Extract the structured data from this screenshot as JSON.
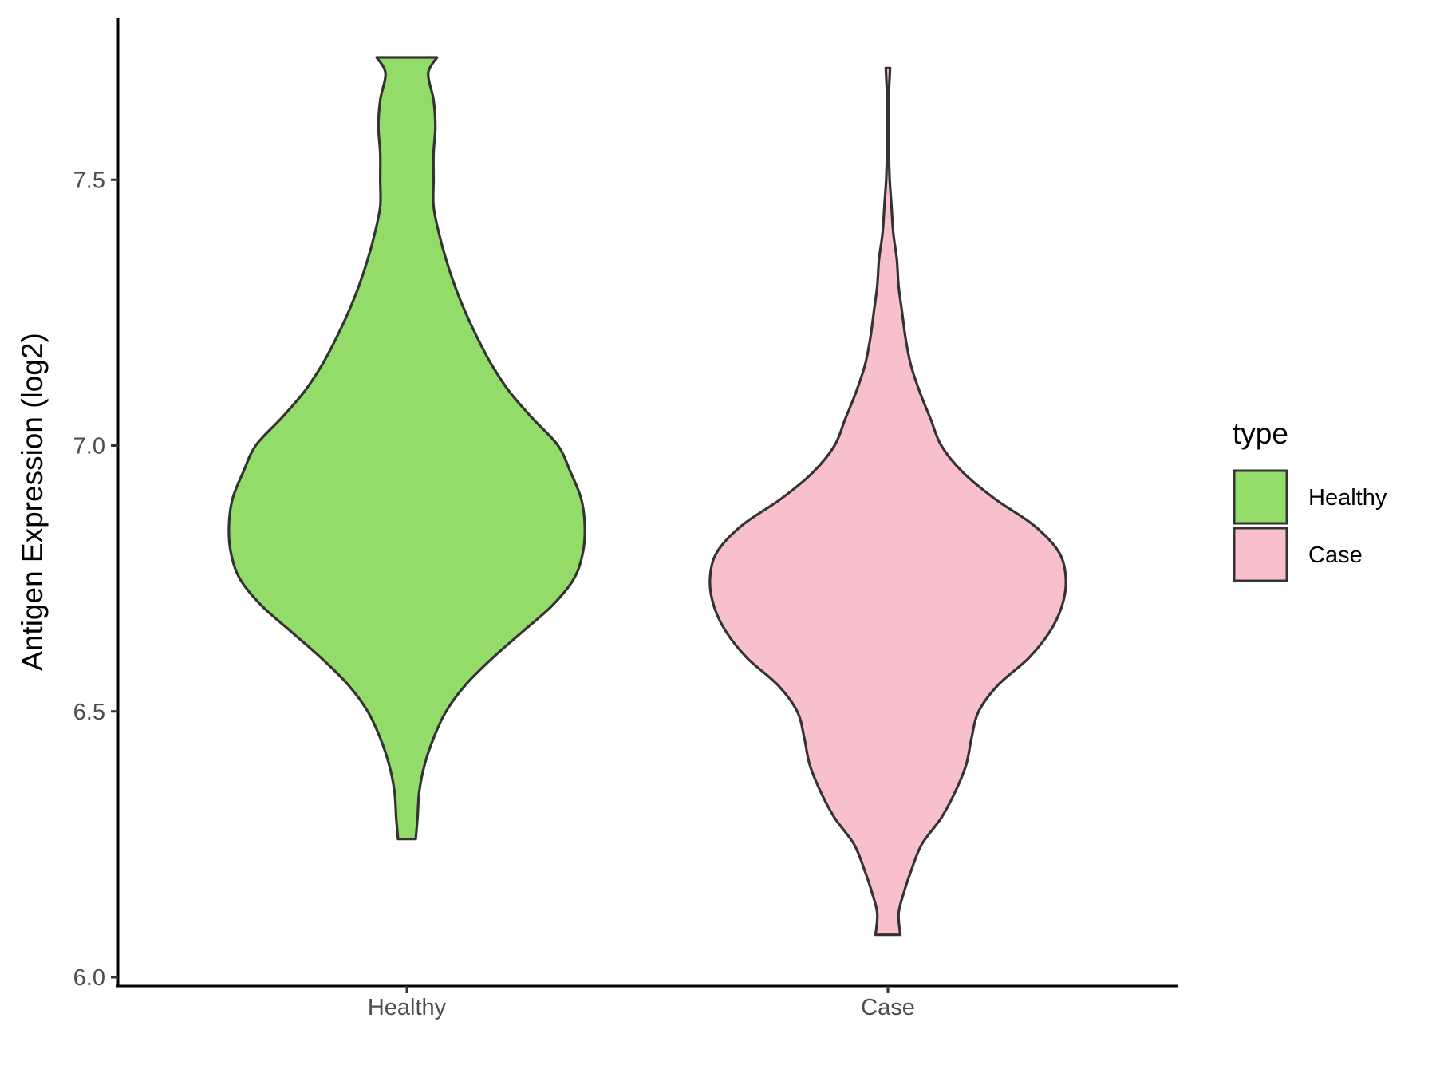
{
  "chart_data": {
    "type": "violin",
    "title": "",
    "xlabel": "",
    "ylabel": "Antigen Expression (log2)",
    "ylim": [
      6.0,
      7.8
    ],
    "yticks": [
      "6.0",
      "6.5",
      "7.0",
      "7.5"
    ],
    "categories": [
      "Healthy",
      "Case"
    ],
    "grid": false,
    "legend": {
      "title": "type",
      "position": "right",
      "items": [
        {
          "label": "Healthy",
          "color": "#93DC6A"
        },
        {
          "label": "Case",
          "color": "#F8C0CB"
        }
      ]
    },
    "series": [
      {
        "name": "Healthy",
        "color": "#93DC6A",
        "y_min": 6.26,
        "y_max": 7.73,
        "density": [
          [
            6.26,
            0.05
          ],
          [
            6.3,
            0.06
          ],
          [
            6.35,
            0.07
          ],
          [
            6.4,
            0.1
          ],
          [
            6.45,
            0.15
          ],
          [
            6.5,
            0.22
          ],
          [
            6.55,
            0.33
          ],
          [
            6.6,
            0.48
          ],
          [
            6.65,
            0.65
          ],
          [
            6.7,
            0.82
          ],
          [
            6.75,
            0.94
          ],
          [
            6.8,
            0.99
          ],
          [
            6.85,
            1.0
          ],
          [
            6.9,
            0.98
          ],
          [
            6.95,
            0.92
          ],
          [
            7.0,
            0.85
          ],
          [
            7.05,
            0.71
          ],
          [
            7.1,
            0.58
          ],
          [
            7.15,
            0.48
          ],
          [
            7.2,
            0.4
          ],
          [
            7.25,
            0.33
          ],
          [
            7.3,
            0.27
          ],
          [
            7.35,
            0.22
          ],
          [
            7.4,
            0.18
          ],
          [
            7.45,
            0.15
          ],
          [
            7.5,
            0.15
          ],
          [
            7.55,
            0.15
          ],
          [
            7.6,
            0.16
          ],
          [
            7.65,
            0.15
          ],
          [
            7.7,
            0.12
          ],
          [
            7.73,
            0.17
          ]
        ]
      },
      {
        "name": "Case",
        "color": "#F8C0CB",
        "y_min": 6.08,
        "y_max": 7.71,
        "density": [
          [
            6.08,
            0.07
          ],
          [
            6.12,
            0.06
          ],
          [
            6.16,
            0.09
          ],
          [
            6.2,
            0.13
          ],
          [
            6.25,
            0.19
          ],
          [
            6.3,
            0.3
          ],
          [
            6.35,
            0.38
          ],
          [
            6.4,
            0.44
          ],
          [
            6.45,
            0.47
          ],
          [
            6.5,
            0.51
          ],
          [
            6.55,
            0.62
          ],
          [
            6.6,
            0.79
          ],
          [
            6.65,
            0.91
          ],
          [
            6.7,
            0.98
          ],
          [
            6.75,
            1.0
          ],
          [
            6.8,
            0.96
          ],
          [
            6.85,
            0.82
          ],
          [
            6.9,
            0.6
          ],
          [
            6.95,
            0.42
          ],
          [
            7.0,
            0.3
          ],
          [
            7.05,
            0.24
          ],
          [
            7.1,
            0.18
          ],
          [
            7.15,
            0.13
          ],
          [
            7.2,
            0.1
          ],
          [
            7.25,
            0.08
          ],
          [
            7.3,
            0.06
          ],
          [
            7.35,
            0.05
          ],
          [
            7.4,
            0.03
          ],
          [
            7.45,
            0.02
          ],
          [
            7.5,
            0.01
          ],
          [
            7.55,
            0.005
          ],
          [
            7.6,
            0.004
          ],
          [
            7.65,
            0.004
          ],
          [
            7.71,
            0.012
          ]
        ]
      }
    ]
  },
  "colors": {
    "outline": "#333333",
    "axis": "#000000",
    "tick_label": "#4d4d4d"
  }
}
